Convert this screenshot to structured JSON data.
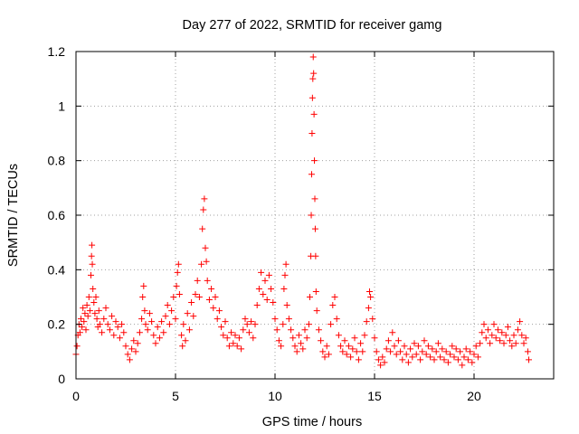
{
  "chart_data": {
    "type": "scatter",
    "title": "Day 277 of 2022, SRMTID for receiver gamg",
    "xlabel": "GPS time / hours",
    "ylabel": "SRMTID / TECUs",
    "xlim": [
      0,
      24
    ],
    "ylim": [
      0,
      1.2
    ],
    "grid": true,
    "marker": "+",
    "x_ticks": [
      0,
      5,
      10,
      15,
      20
    ],
    "x_tick_labels": [
      "0",
      "5",
      "10",
      "15",
      "20"
    ],
    "y_ticks": [
      0,
      0.2,
      0.4,
      0.6,
      0.8,
      1.0,
      1.2
    ],
    "y_tick_labels": [
      "0",
      "0.2",
      "0.4",
      "0.6",
      "0.8",
      "1",
      "1.2"
    ],
    "series": [
      {
        "name": "SRMTID",
        "color": "#ff0000",
        "points": [
          [
            0.0,
            0.09
          ],
          [
            0.05,
            0.12
          ],
          [
            0.1,
            0.16
          ],
          [
            0.15,
            0.2
          ],
          [
            0.2,
            0.17
          ],
          [
            0.25,
            0.22
          ],
          [
            0.3,
            0.19
          ],
          [
            0.35,
            0.26
          ],
          [
            0.4,
            0.21
          ],
          [
            0.45,
            0.24
          ],
          [
            0.5,
            0.18
          ],
          [
            0.55,
            0.27
          ],
          [
            0.6,
            0.23
          ],
          [
            0.65,
            0.3
          ],
          [
            0.7,
            0.25
          ],
          [
            0.75,
            0.38
          ],
          [
            0.78,
            0.45
          ],
          [
            0.8,
            0.49
          ],
          [
            0.82,
            0.42
          ],
          [
            0.85,
            0.33
          ],
          [
            0.9,
            0.28
          ],
          [
            0.95,
            0.24
          ],
          [
            1.0,
            0.3
          ],
          [
            1.05,
            0.22
          ],
          [
            1.1,
            0.19
          ],
          [
            1.15,
            0.25
          ],
          [
            1.2,
            0.2
          ],
          [
            1.3,
            0.17
          ],
          [
            1.4,
            0.22
          ],
          [
            1.5,
            0.26
          ],
          [
            1.6,
            0.2
          ],
          [
            1.7,
            0.18
          ],
          [
            1.8,
            0.23
          ],
          [
            1.9,
            0.16
          ],
          [
            2.0,
            0.21
          ],
          [
            2.1,
            0.19
          ],
          [
            2.2,
            0.15
          ],
          [
            2.3,
            0.2
          ],
          [
            2.4,
            0.17
          ],
          [
            2.5,
            0.12
          ],
          [
            2.6,
            0.09
          ],
          [
            2.7,
            0.07
          ],
          [
            2.8,
            0.11
          ],
          [
            2.9,
            0.14
          ],
          [
            3.0,
            0.1
          ],
          [
            3.1,
            0.13
          ],
          [
            3.2,
            0.17
          ],
          [
            3.3,
            0.22
          ],
          [
            3.35,
            0.3
          ],
          [
            3.4,
            0.34
          ],
          [
            3.45,
            0.25
          ],
          [
            3.5,
            0.2
          ],
          [
            3.6,
            0.18
          ],
          [
            3.7,
            0.24
          ],
          [
            3.8,
            0.21
          ],
          [
            3.9,
            0.16
          ],
          [
            4.0,
            0.13
          ],
          [
            4.1,
            0.19
          ],
          [
            4.2,
            0.15
          ],
          [
            4.3,
            0.21
          ],
          [
            4.4,
            0.17
          ],
          [
            4.5,
            0.23
          ],
          [
            4.6,
            0.27
          ],
          [
            4.7,
            0.2
          ],
          [
            4.8,
            0.25
          ],
          [
            4.9,
            0.3
          ],
          [
            5.0,
            0.22
          ],
          [
            5.05,
            0.34
          ],
          [
            5.1,
            0.39
          ],
          [
            5.15,
            0.42
          ],
          [
            5.2,
            0.31
          ],
          [
            5.3,
            0.16
          ],
          [
            5.35,
            0.12
          ],
          [
            5.4,
            0.2
          ],
          [
            5.5,
            0.14
          ],
          [
            5.6,
            0.24
          ],
          [
            5.7,
            0.18
          ],
          [
            5.8,
            0.28
          ],
          [
            5.9,
            0.23
          ],
          [
            6.0,
            0.31
          ],
          [
            6.1,
            0.36
          ],
          [
            6.2,
            0.3
          ],
          [
            6.3,
            0.42
          ],
          [
            6.35,
            0.55
          ],
          [
            6.4,
            0.62
          ],
          [
            6.45,
            0.66
          ],
          [
            6.5,
            0.48
          ],
          [
            6.55,
            0.43
          ],
          [
            6.6,
            0.36
          ],
          [
            6.7,
            0.29
          ],
          [
            6.8,
            0.33
          ],
          [
            6.9,
            0.26
          ],
          [
            7.0,
            0.3
          ],
          [
            7.1,
            0.22
          ],
          [
            7.2,
            0.25
          ],
          [
            7.3,
            0.19
          ],
          [
            7.4,
            0.16
          ],
          [
            7.5,
            0.21
          ],
          [
            7.6,
            0.15
          ],
          [
            7.7,
            0.12
          ],
          [
            7.8,
            0.17
          ],
          [
            7.9,
            0.13
          ],
          [
            8.0,
            0.16
          ],
          [
            8.1,
            0.12
          ],
          [
            8.2,
            0.15
          ],
          [
            8.3,
            0.11
          ],
          [
            8.4,
            0.18
          ],
          [
            8.5,
            0.22
          ],
          [
            8.6,
            0.2
          ],
          [
            8.7,
            0.17
          ],
          [
            8.8,
            0.21
          ],
          [
            8.9,
            0.15
          ],
          [
            9.0,
            0.2
          ],
          [
            9.1,
            0.27
          ],
          [
            9.2,
            0.33
          ],
          [
            9.3,
            0.39
          ],
          [
            9.4,
            0.31
          ],
          [
            9.5,
            0.36
          ],
          [
            9.6,
            0.29
          ],
          [
            9.7,
            0.38
          ],
          [
            9.8,
            0.33
          ],
          [
            9.9,
            0.28
          ],
          [
            10.0,
            0.22
          ],
          [
            10.1,
            0.18
          ],
          [
            10.2,
            0.14
          ],
          [
            10.3,
            0.12
          ],
          [
            10.4,
            0.2
          ],
          [
            10.45,
            0.33
          ],
          [
            10.5,
            0.38
          ],
          [
            10.55,
            0.42
          ],
          [
            10.6,
            0.27
          ],
          [
            10.7,
            0.22
          ],
          [
            10.8,
            0.18
          ],
          [
            10.9,
            0.15
          ],
          [
            11.0,
            0.12
          ],
          [
            11.1,
            0.1
          ],
          [
            11.2,
            0.16
          ],
          [
            11.3,
            0.13
          ],
          [
            11.4,
            0.11
          ],
          [
            11.5,
            0.18
          ],
          [
            11.6,
            0.15
          ],
          [
            11.7,
            0.2
          ],
          [
            11.75,
            0.3
          ],
          [
            11.8,
            0.45
          ],
          [
            11.82,
            0.6
          ],
          [
            11.84,
            0.75
          ],
          [
            11.86,
            0.9
          ],
          [
            11.88,
            1.03
          ],
          [
            11.9,
            1.1
          ],
          [
            11.92,
            1.18
          ],
          [
            11.94,
            1.12
          ],
          [
            11.96,
            0.97
          ],
          [
            11.98,
            0.8
          ],
          [
            12.0,
            0.66
          ],
          [
            12.02,
            0.55
          ],
          [
            12.04,
            0.45
          ],
          [
            12.06,
            0.32
          ],
          [
            12.1,
            0.25
          ],
          [
            12.2,
            0.18
          ],
          [
            12.3,
            0.14
          ],
          [
            12.4,
            0.1
          ],
          [
            12.5,
            0.08
          ],
          [
            12.6,
            0.12
          ],
          [
            12.7,
            0.09
          ],
          [
            12.8,
            0.2
          ],
          [
            12.9,
            0.27
          ],
          [
            13.0,
            0.3
          ],
          [
            13.1,
            0.22
          ],
          [
            13.2,
            0.16
          ],
          [
            13.3,
            0.12
          ],
          [
            13.4,
            0.1
          ],
          [
            13.5,
            0.14
          ],
          [
            13.6,
            0.09
          ],
          [
            13.7,
            0.12
          ],
          [
            13.8,
            0.08
          ],
          [
            13.9,
            0.11
          ],
          [
            14.0,
            0.15
          ],
          [
            14.1,
            0.1
          ],
          [
            14.2,
            0.07
          ],
          [
            14.3,
            0.13
          ],
          [
            14.4,
            0.1
          ],
          [
            14.5,
            0.16
          ],
          [
            14.6,
            0.21
          ],
          [
            14.7,
            0.26
          ],
          [
            14.75,
            0.32
          ],
          [
            14.8,
            0.3
          ],
          [
            14.9,
            0.22
          ],
          [
            15.0,
            0.15
          ],
          [
            15.1,
            0.1
          ],
          [
            15.2,
            0.07
          ],
          [
            15.3,
            0.05
          ],
          [
            15.4,
            0.08
          ],
          [
            15.5,
            0.06
          ],
          [
            15.6,
            0.11
          ],
          [
            15.7,
            0.14
          ],
          [
            15.8,
            0.1
          ],
          [
            15.9,
            0.17
          ],
          [
            16.0,
            0.12
          ],
          [
            16.1,
            0.09
          ],
          [
            16.2,
            0.14
          ],
          [
            16.3,
            0.1
          ],
          [
            16.4,
            0.07
          ],
          [
            16.5,
            0.12
          ],
          [
            16.6,
            0.09
          ],
          [
            16.7,
            0.06
          ],
          [
            16.8,
            0.11
          ],
          [
            16.9,
            0.08
          ],
          [
            17.0,
            0.13
          ],
          [
            17.1,
            0.09
          ],
          [
            17.2,
            0.12
          ],
          [
            17.3,
            0.07
          ],
          [
            17.4,
            0.1
          ],
          [
            17.5,
            0.14
          ],
          [
            17.6,
            0.09
          ],
          [
            17.7,
            0.12
          ],
          [
            17.8,
            0.08
          ],
          [
            17.9,
            0.11
          ],
          [
            18.0,
            0.07
          ],
          [
            18.1,
            0.1
          ],
          [
            18.2,
            0.13
          ],
          [
            18.3,
            0.08
          ],
          [
            18.4,
            0.11
          ],
          [
            18.5,
            0.07
          ],
          [
            18.6,
            0.1
          ],
          [
            18.7,
            0.06
          ],
          [
            18.8,
            0.09
          ],
          [
            18.9,
            0.12
          ],
          [
            19.0,
            0.08
          ],
          [
            19.1,
            0.11
          ],
          [
            19.2,
            0.07
          ],
          [
            19.3,
            0.1
          ],
          [
            19.4,
            0.05
          ],
          [
            19.5,
            0.08
          ],
          [
            19.6,
            0.11
          ],
          [
            19.7,
            0.07
          ],
          [
            19.8,
            0.1
          ],
          [
            19.9,
            0.06
          ],
          [
            20.0,
            0.09
          ],
          [
            20.1,
            0.12
          ],
          [
            20.2,
            0.08
          ],
          [
            20.3,
            0.13
          ],
          [
            20.4,
            0.17
          ],
          [
            20.5,
            0.2
          ],
          [
            20.6,
            0.15
          ],
          [
            20.7,
            0.18
          ],
          [
            20.8,
            0.13
          ],
          [
            20.9,
            0.16
          ],
          [
            21.0,
            0.2
          ],
          [
            21.1,
            0.15
          ],
          [
            21.2,
            0.18
          ],
          [
            21.3,
            0.14
          ],
          [
            21.4,
            0.17
          ],
          [
            21.5,
            0.13
          ],
          [
            21.6,
            0.16
          ],
          [
            21.7,
            0.19
          ],
          [
            21.8,
            0.14
          ],
          [
            21.9,
            0.12
          ],
          [
            22.0,
            0.16
          ],
          [
            22.1,
            0.13
          ],
          [
            22.2,
            0.18
          ],
          [
            22.3,
            0.21
          ],
          [
            22.4,
            0.16
          ],
          [
            22.5,
            0.13
          ],
          [
            22.6,
            0.15
          ],
          [
            22.7,
            0.1
          ],
          [
            22.75,
            0.07
          ]
        ]
      }
    ]
  }
}
